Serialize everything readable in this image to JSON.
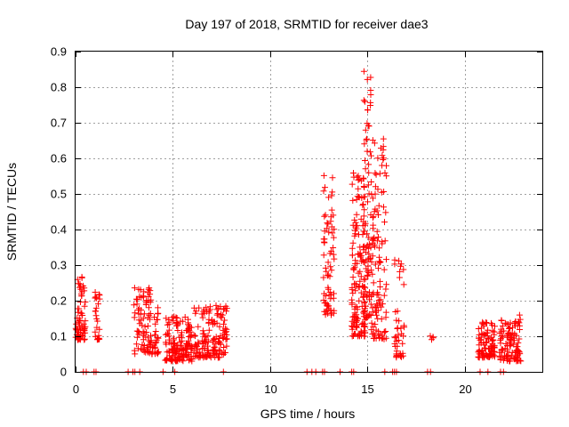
{
  "chart_data": {
    "type": "scatter",
    "title": "Day 197 of 2018, SRMTID for receiver dae3",
    "xlabel": "GPS time / hours",
    "ylabel": "SRMTID / TECUs",
    "xlim": [
      0,
      24
    ],
    "ylim": [
      0,
      0.9
    ],
    "xticks": [
      0,
      5,
      10,
      15,
      20
    ],
    "xtick_labels": [
      "0",
      "5",
      "10",
      "15",
      "20"
    ],
    "yticks": [
      0,
      0.1,
      0.2,
      0.3,
      0.4,
      0.5,
      0.6,
      0.7,
      0.8,
      0.9
    ],
    "ytick_labels": [
      "0",
      "0.1",
      "0.2",
      "0.3",
      "0.4",
      "0.5",
      "0.6",
      "0.7",
      "0.8",
      "0.9"
    ],
    "grid": true,
    "marker": "+",
    "color": "#ff0000",
    "series": [
      {
        "name": "SRMTID",
        "clusters": [
          {
            "x0": 0.0,
            "x1": 0.5,
            "y_lo": 0.09,
            "y_hi": 0.27,
            "count": 70
          },
          {
            "x0": 1.0,
            "x1": 1.25,
            "y_lo": 0.09,
            "y_hi": 0.24,
            "count": 25
          },
          {
            "x0": 3.0,
            "x1": 4.3,
            "y_lo": 0.05,
            "y_hi": 0.24,
            "count": 110
          },
          {
            "x0": 4.6,
            "x1": 6.0,
            "y_lo": 0.03,
            "y_hi": 0.16,
            "count": 150
          },
          {
            "x0": 6.0,
            "x1": 7.8,
            "y_lo": 0.04,
            "y_hi": 0.19,
            "count": 150
          },
          {
            "x0": 12.7,
            "x1": 13.3,
            "y_lo": 0.16,
            "y_hi": 0.58,
            "count": 70
          },
          {
            "x0": 14.2,
            "x1": 14.9,
            "y_lo": 0.1,
            "y_hi": 0.56,
            "count": 140
          },
          {
            "x0": 14.8,
            "x1": 15.2,
            "y_lo": 0.15,
            "y_hi": 0.85,
            "count": 80
          },
          {
            "x0": 15.2,
            "x1": 16.0,
            "y_lo": 0.09,
            "y_hi": 0.66,
            "count": 120
          },
          {
            "x0": 16.4,
            "x1": 16.9,
            "y_lo": 0.04,
            "y_hi": 0.32,
            "count": 40
          },
          {
            "x0": 18.2,
            "x1": 18.4,
            "y_lo": 0.09,
            "y_hi": 0.13,
            "count": 4
          },
          {
            "x0": 20.7,
            "x1": 21.6,
            "y_lo": 0.04,
            "y_hi": 0.14,
            "count": 100
          },
          {
            "x0": 21.8,
            "x1": 22.9,
            "y_lo": 0.03,
            "y_hi": 0.16,
            "count": 110
          }
        ],
        "zero_points_x": [
          0.4,
          0.55,
          0.95,
          1.05,
          2.7,
          2.95,
          3.05,
          3.3,
          4.5,
          5.1,
          7.6,
          11.9,
          12.15,
          12.35,
          12.7,
          12.8,
          13.6,
          14.2,
          14.3,
          15.9,
          16.3,
          16.4,
          16.5,
          18.1,
          18.25,
          20.8,
          21.2,
          21.85,
          22.0
        ]
      }
    ]
  }
}
